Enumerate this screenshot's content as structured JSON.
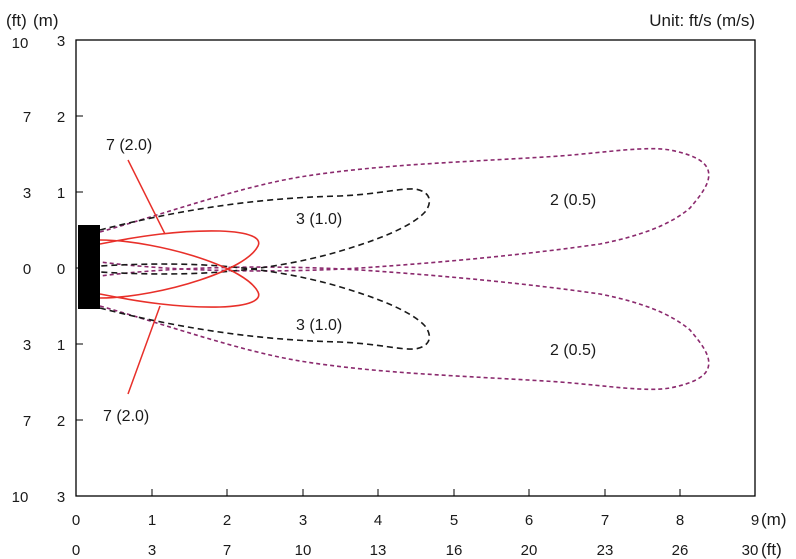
{
  "header": {
    "unit_label": "Unit: ft/s (m/s)",
    "y_unit_ft": "(ft)",
    "y_unit_m": "(m)"
  },
  "axes": {
    "x_m_ticks": [
      "0",
      "1",
      "2",
      "3",
      "4",
      "5",
      "6",
      "7",
      "8",
      "9"
    ],
    "x_ft_ticks": [
      "0",
      "3",
      "7",
      "10",
      "13",
      "16",
      "20",
      "23",
      "26",
      "30"
    ],
    "x_unit_m": "(m)",
    "x_unit_ft": "(ft)",
    "y_m_ticks": [
      "3",
      "2",
      "1",
      "0",
      "1",
      "2",
      "3"
    ],
    "y_ft_ticks": [
      "10",
      "7",
      "3",
      "0",
      "3",
      "7",
      "10"
    ]
  },
  "contours": {
    "velocity_7_top": "7 (2.0)",
    "velocity_7_bottom": "7 (2.0)",
    "velocity_3_top": "3 (1.0)",
    "velocity_3_bottom": "3 (1.0)",
    "velocity_2_top": "2 (0.5)",
    "velocity_2_bottom": "2 (0.5)"
  },
  "colors": {
    "contour_7": "#e8302a",
    "contour_3": "#1a1a1a",
    "contour_2": "#8b2a6e",
    "source": "#000000"
  }
}
